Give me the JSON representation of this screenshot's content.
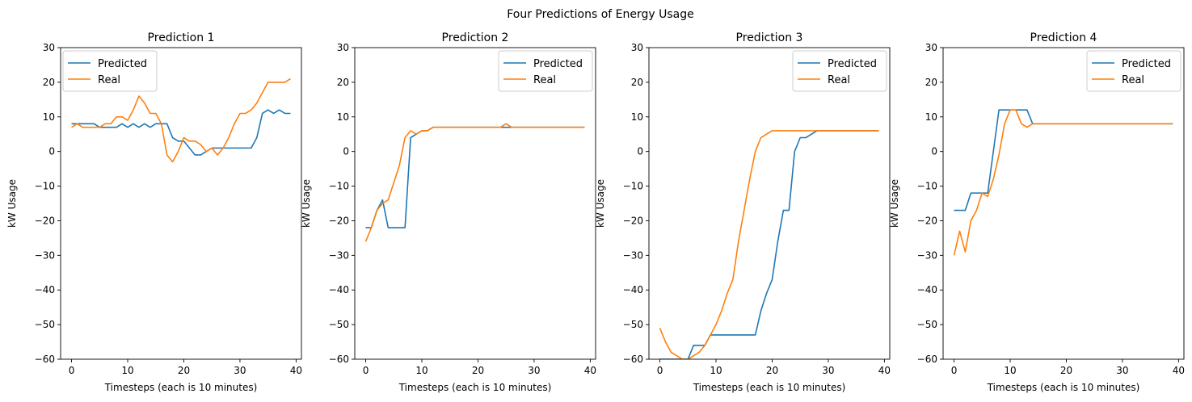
{
  "figure": {
    "title": "Four Predictions of Energy Usage"
  },
  "colors": {
    "predicted": "#1f77b4",
    "real": "#ff7f0e"
  },
  "chart_data": [
    {
      "type": "line",
      "title": "Prediction 1",
      "xlabel": "Timesteps (each is 10 minutes)",
      "ylabel": "kW Usage",
      "xlim": [
        -1.95,
        40.95
      ],
      "ylim": [
        -60,
        30
      ],
      "xticks": [
        0,
        10,
        20,
        30,
        40
      ],
      "yticks": [
        -60,
        -50,
        -40,
        -30,
        -20,
        -10,
        0,
        10,
        20,
        30
      ],
      "legend": "top-left",
      "grid": false,
      "x": [
        0,
        1,
        2,
        3,
        4,
        5,
        6,
        7,
        8,
        9,
        10,
        11,
        12,
        13,
        14,
        15,
        16,
        17,
        18,
        19,
        20,
        21,
        22,
        23,
        24,
        25,
        26,
        27,
        28,
        29,
        30,
        31,
        32,
        33,
        34,
        35,
        36,
        37,
        38,
        39
      ],
      "series": [
        {
          "name": "Predicted",
          "values": [
            8,
            8,
            8,
            8,
            8,
            7,
            7,
            7,
            7,
            8,
            7,
            8,
            7,
            8,
            7,
            8,
            8,
            8,
            4,
            3,
            3,
            1,
            -1,
            -1,
            0,
            1,
            1,
            1,
            1,
            1,
            1,
            1,
            1,
            4,
            11,
            12,
            11,
            12,
            11,
            11
          ]
        },
        {
          "name": "Real",
          "values": [
            7,
            8,
            7,
            7,
            7,
            7,
            8,
            8,
            10,
            10,
            9,
            12,
            16,
            14,
            11,
            11,
            8,
            -1,
            -3,
            0,
            4,
            3,
            3,
            2,
            0,
            1,
            -1,
            1,
            4,
            8,
            11,
            11,
            12,
            14,
            17,
            20,
            20,
            20,
            20,
            21
          ]
        }
      ]
    },
    {
      "type": "line",
      "title": "Prediction 2",
      "xlabel": "Timesteps (each is 10 minutes)",
      "ylabel": "kW Usage",
      "xlim": [
        -1.95,
        40.95
      ],
      "ylim": [
        -60,
        30
      ],
      "xticks": [
        0,
        10,
        20,
        30,
        40
      ],
      "yticks": [
        -60,
        -50,
        -40,
        -30,
        -20,
        -10,
        0,
        10,
        20,
        30
      ],
      "legend": "top-right",
      "grid": false,
      "x": [
        0,
        1,
        2,
        3,
        4,
        5,
        6,
        7,
        8,
        9,
        10,
        11,
        12,
        13,
        14,
        15,
        16,
        17,
        18,
        19,
        20,
        21,
        22,
        23,
        24,
        25,
        26,
        27,
        28,
        29,
        30,
        31,
        32,
        33,
        34,
        35,
        36,
        37,
        38,
        39
      ],
      "series": [
        {
          "name": "Predicted",
          "values": [
            -22,
            -22,
            -17,
            -14,
            -22,
            -22,
            -22,
            -22,
            4,
            5,
            6,
            6,
            7,
            7,
            7,
            7,
            7,
            7,
            7,
            7,
            7,
            7,
            7,
            7,
            7,
            7,
            7,
            7,
            7,
            7,
            7,
            7,
            7,
            7,
            7,
            7,
            7,
            7,
            7,
            7
          ]
        },
        {
          "name": "Real",
          "values": [
            -26,
            -22,
            -17,
            -15,
            -14,
            -9,
            -4,
            4,
            6,
            5,
            6,
            6,
            7,
            7,
            7,
            7,
            7,
            7,
            7,
            7,
            7,
            7,
            7,
            7,
            7,
            8,
            7,
            7,
            7,
            7,
            7,
            7,
            7,
            7,
            7,
            7,
            7,
            7,
            7,
            7
          ]
        }
      ]
    },
    {
      "type": "line",
      "title": "Prediction 3",
      "xlabel": "Timesteps (each is 10 minutes)",
      "ylabel": "kW Usage",
      "xlim": [
        -1.95,
        40.95
      ],
      "ylim": [
        -60,
        30
      ],
      "xticks": [
        0,
        10,
        20,
        30,
        40
      ],
      "yticks": [
        -60,
        -50,
        -40,
        -30,
        -20,
        -10,
        0,
        10,
        20,
        30
      ],
      "legend": "top-right",
      "grid": false,
      "x": [
        0,
        1,
        2,
        3,
        4,
        5,
        6,
        7,
        8,
        9,
        10,
        11,
        12,
        13,
        14,
        15,
        16,
        17,
        18,
        19,
        20,
        21,
        22,
        23,
        24,
        25,
        26,
        27,
        28,
        29,
        30,
        31,
        32,
        33,
        34,
        35,
        36,
        37,
        38,
        39
      ],
      "series": [
        {
          "name": "Predicted",
          "values": [
            -60,
            -60,
            -60,
            -60,
            -60,
            -60,
            -56,
            -56,
            -56,
            -53,
            -53,
            -53,
            -53,
            -53,
            -53,
            -53,
            -53,
            -53,
            -46,
            -41,
            -37,
            -26,
            -17,
            -17,
            0,
            4,
            4,
            5,
            6,
            6,
            6,
            6,
            6,
            6,
            6,
            6,
            6,
            6,
            6,
            6
          ]
        },
        {
          "name": "Real",
          "values": [
            -51,
            -55,
            -58,
            -59,
            -60,
            -60,
            -59,
            -58,
            -56,
            -53,
            -50,
            -46,
            -41,
            -37,
            -26,
            -17,
            -8,
            0,
            4,
            5,
            6,
            6,
            6,
            6,
            6,
            6,
            6,
            6,
            6,
            6,
            6,
            6,
            6,
            6,
            6,
            6,
            6,
            6,
            6,
            6
          ]
        }
      ]
    },
    {
      "type": "line",
      "title": "Prediction 4",
      "xlabel": "Timesteps (each is 10 minutes)",
      "ylabel": "kW Usage",
      "xlim": [
        -1.95,
        40.95
      ],
      "ylim": [
        -60,
        30
      ],
      "xticks": [
        0,
        10,
        20,
        30,
        40
      ],
      "yticks": [
        -60,
        -50,
        -40,
        -30,
        -20,
        -10,
        0,
        10,
        20,
        30
      ],
      "legend": "top-right",
      "grid": false,
      "x": [
        0,
        1,
        2,
        3,
        4,
        5,
        6,
        7,
        8,
        9,
        10,
        11,
        12,
        13,
        14,
        15,
        16,
        17,
        18,
        19,
        20,
        21,
        22,
        23,
        24,
        25,
        26,
        27,
        28,
        29,
        30,
        31,
        32,
        33,
        34,
        35,
        36,
        37,
        38,
        39
      ],
      "series": [
        {
          "name": "Predicted",
          "values": [
            -17,
            -17,
            -17,
            -12,
            -12,
            -12,
            -12,
            0,
            12,
            12,
            12,
            12,
            12,
            12,
            8,
            8,
            8,
            8,
            8,
            8,
            8,
            8,
            8,
            8,
            8,
            8,
            8,
            8,
            8,
            8,
            8,
            8,
            8,
            8,
            8,
            8,
            8,
            8,
            8,
            8
          ]
        },
        {
          "name": "Real",
          "values": [
            -30,
            -23,
            -29,
            -20,
            -17,
            -12,
            -13,
            -8,
            -1,
            8,
            12,
            12,
            8,
            7,
            8,
            8,
            8,
            8,
            8,
            8,
            8,
            8,
            8,
            8,
            8,
            8,
            8,
            8,
            8,
            8,
            8,
            8,
            8,
            8,
            8,
            8,
            8,
            8,
            8,
            8
          ]
        }
      ]
    }
  ]
}
